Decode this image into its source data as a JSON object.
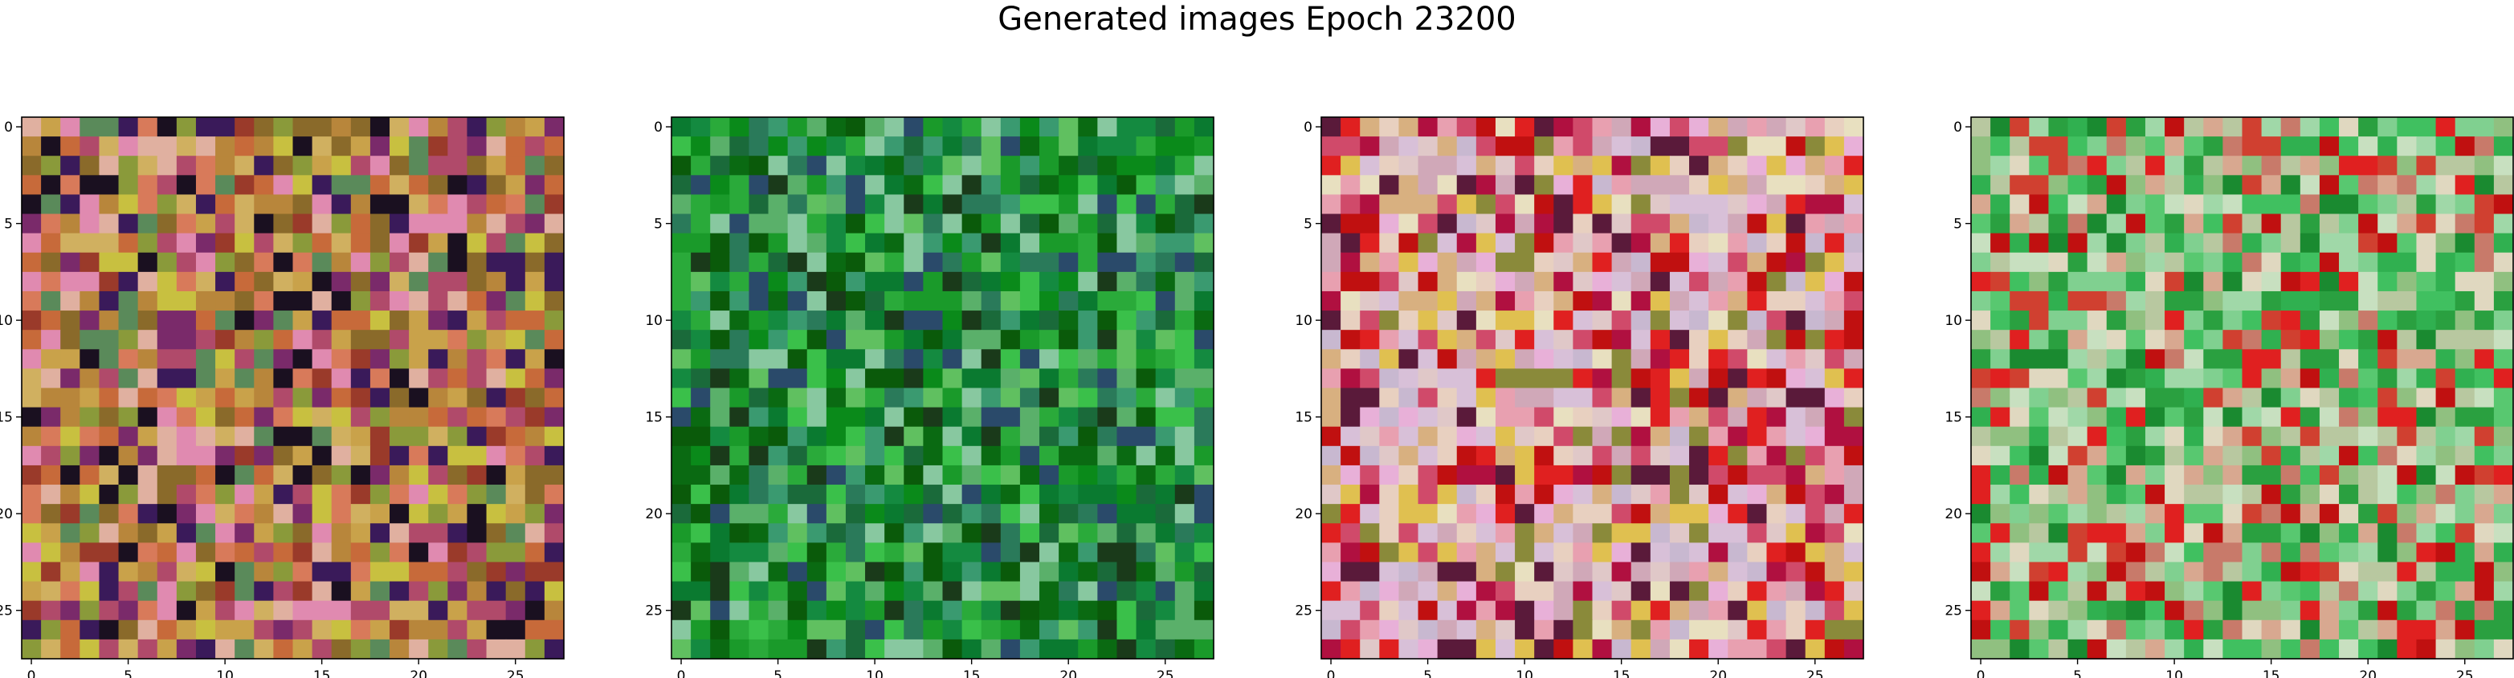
{
  "title": "Generated images Epoch 23200",
  "chart_data": [
    {
      "type": "heatmap",
      "description_of_content": "",
      "grid_size": [
        28,
        28
      ],
      "xticks": [
        0,
        5,
        10,
        15,
        20,
        25
      ],
      "yticks": [
        0,
        5,
        10,
        15,
        20,
        25
      ],
      "xlim": [
        -0.5,
        27.5
      ],
      "ylim": [
        27.5,
        -0.5
      ],
      "palette": [
        "#c9a24a",
        "#b8863b",
        "#d0b060",
        "#8a6a2a",
        "#c76a3a",
        "#b04a6a",
        "#7a2a6a",
        "#3a1a5a",
        "#1a1020",
        "#c8c040",
        "#8a9a3a",
        "#d87a5a",
        "#e0b0a0",
        "#9a3a2a",
        "#5a8a5a",
        "#e08ab0"
      ]
    },
    {
      "type": "heatmap",
      "grid_size": [
        28,
        28
      ],
      "xticks": [
        0,
        5,
        10,
        15,
        20,
        25
      ],
      "yticks": [
        0,
        5,
        10,
        15,
        20,
        25
      ],
      "xlim": [
        -0.5,
        27.5
      ],
      "ylim": [
        27.5,
        -0.5
      ],
      "palette": [
        "#0a8a1a",
        "#1a9a2a",
        "#0a6a12",
        "#2aaa3a",
        "#3ac04a",
        "#148a40",
        "#0a5a0a",
        "#1a3a1a",
        "#5ab06a",
        "#3a9a70",
        "#2a7a5a",
        "#60c060",
        "#1a6a3a",
        "#0a7a30",
        "#88c8a0",
        "#2a4a6a"
      ]
    },
    {
      "type": "heatmap",
      "grid_size": [
        28,
        28
      ],
      "xticks": [
        0,
        5,
        10,
        15,
        20,
        25
      ],
      "yticks": [
        0,
        5,
        10,
        15,
        20,
        25
      ],
      "xlim": [
        -0.5,
        27.5
      ],
      "ylim": [
        27.5,
        -0.5
      ],
      "palette": [
        "#e0c8c8",
        "#d8c0d8",
        "#e8d0c0",
        "#d0a8b8",
        "#c8b8d0",
        "#e8e0c0",
        "#d8b080",
        "#e8a0b0",
        "#d04a6a",
        "#e02020",
        "#c01010",
        "#b01040",
        "#e0c050",
        "#8a8a3a",
        "#5a1a3a",
        "#e8b0d8"
      ]
    },
    {
      "type": "heatmap",
      "grid_size": [
        28,
        28
      ],
      "xticks": [
        0,
        5,
        10,
        15,
        20,
        25
      ],
      "yticks": [
        0,
        5,
        10,
        15,
        20,
        25
      ],
      "xlim": [
        -0.5,
        27.5
      ],
      "ylim": [
        27.5,
        -0.5
      ],
      "palette": [
        "#40c060",
        "#58c870",
        "#2aa040",
        "#80d090",
        "#a0d8a8",
        "#c8e0c0",
        "#e0d8c0",
        "#d8a890",
        "#c87a6a",
        "#d04030",
        "#c01010",
        "#e02020",
        "#90c080",
        "#30b050",
        "#1a8a30",
        "#b8c8a0"
      ]
    }
  ]
}
